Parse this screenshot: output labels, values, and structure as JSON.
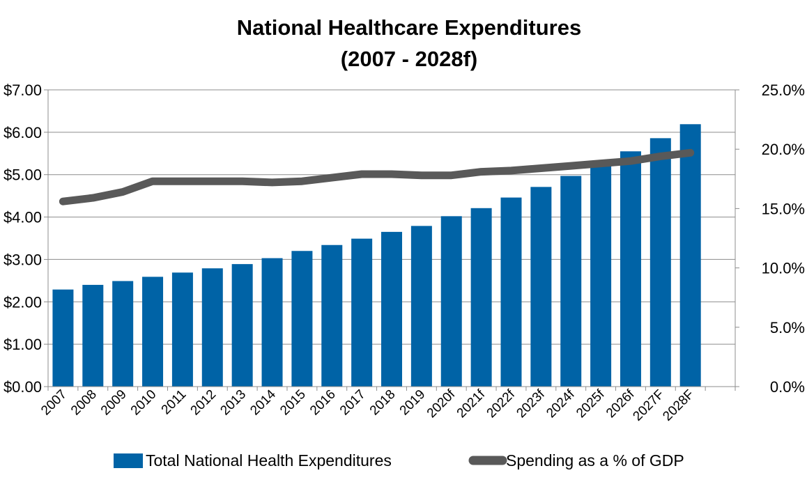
{
  "chart_data": {
    "type": "bar+line",
    "title_line1": "National Healthcare Expenditures",
    "title_line2": "(2007 - 2028f)",
    "categories": [
      "2007",
      "2008",
      "2009",
      "2010",
      "2011",
      "2012",
      "2013",
      "2014",
      "2015",
      "2016",
      "2017",
      "2018",
      "2019",
      "2020f",
      "2021f",
      "2022f",
      "2023f",
      "2024f",
      "2025f",
      "2026f",
      "2027F",
      "2028F"
    ],
    "series": [
      {
        "name": "Total National Health Expenditures",
        "type": "bar",
        "axis": "left",
        "color": "#0063A6",
        "values": [
          2.29,
          2.4,
          2.49,
          2.59,
          2.69,
          2.79,
          2.89,
          3.03,
          3.2,
          3.34,
          3.49,
          3.65,
          3.79,
          4.02,
          4.21,
          4.46,
          4.71,
          4.97,
          5.27,
          5.55,
          5.86,
          6.19
        ]
      },
      {
        "name": "Spending as a % of GDP",
        "type": "line",
        "axis": "right",
        "color": "#595959",
        "values": [
          15.6,
          15.9,
          16.4,
          17.3,
          17.3,
          17.3,
          17.3,
          17.2,
          17.3,
          17.6,
          17.9,
          17.9,
          17.8,
          17.8,
          18.1,
          18.2,
          18.4,
          18.6,
          18.8,
          19.0,
          19.4,
          19.7
        ]
      }
    ],
    "y_left": {
      "ylim": [
        0,
        7
      ],
      "ticks": [
        0,
        1,
        2,
        3,
        4,
        5,
        6,
        7
      ],
      "tick_labels": [
        "$0.00",
        "$1.00",
        "$2.00",
        "$3.00",
        "$4.00",
        "$5.00",
        "$6.00",
        "$7.00"
      ]
    },
    "y_right": {
      "ylim": [
        0,
        25
      ],
      "ticks": [
        0,
        5,
        10,
        15,
        20,
        25
      ],
      "tick_labels": [
        "0.0%",
        "5.0%",
        "10.0%",
        "15.0%",
        "20.0%",
        "25.0%"
      ]
    },
    "grid": true,
    "legend": "bottom"
  }
}
